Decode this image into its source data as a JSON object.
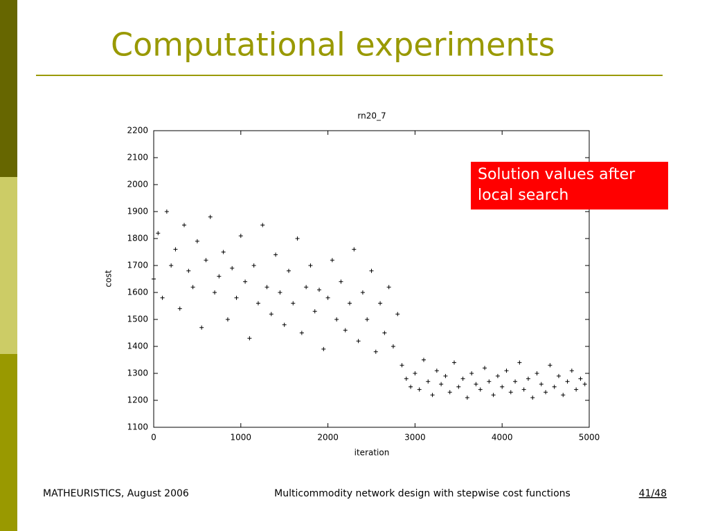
{
  "slide_title": "Computational experiments",
  "annotation": "Solution values after local search",
  "footer": {
    "left": "MATHEURISTICS, August 2006",
    "center": "Multicommodity network design with stepwise cost functions",
    "right": "41/48"
  },
  "chart_data": {
    "type": "scatter",
    "title": "rn20_7",
    "x_label": "iteration",
    "y_label": "cost",
    "xlim": [
      0,
      5000
    ],
    "xticks": [
      0,
      1000,
      2000,
      3000,
      4000,
      5000
    ],
    "ylim": [
      1100,
      2200
    ],
    "yticks": [
      1100,
      1200,
      1300,
      1400,
      1500,
      1600,
      1700,
      1800,
      1900,
      2000,
      2100,
      2200
    ],
    "series": [
      {
        "color": "#000000",
        "x": [
          0,
          50,
          100,
          150,
          200,
          250,
          300,
          350,
          400,
          450,
          500,
          550,
          600,
          650,
          700,
          750,
          800,
          850,
          900,
          950,
          1000,
          1050,
          1100,
          1150,
          1200,
          1250,
          1300,
          1350,
          1400,
          1450,
          1500,
          1550,
          1600,
          1650,
          1700,
          1750,
          1800,
          1850,
          1900,
          1950,
          2000,
          2050,
          2100,
          2150,
          2200,
          2250,
          2300,
          2350,
          2400,
          2450,
          2500,
          2550,
          2600,
          2650,
          2700,
          2750,
          2800,
          2850,
          2900,
          2950,
          3000,
          3050,
          3100,
          3150,
          3200,
          3250,
          3300,
          3350,
          3400,
          3450,
          3500,
          3550,
          3600,
          3650,
          3700,
          3750,
          3800,
          3850,
          3900,
          3950,
          4000,
          4050,
          4100,
          4150,
          4200,
          4250,
          4300,
          4350,
          4400,
          4450,
          4500,
          4550,
          4600,
          4650,
          4700,
          4750,
          4800,
          4850,
          4900,
          4950
        ],
        "values": [
          1650,
          1820,
          1580,
          1900,
          1700,
          1760,
          1540,
          1850,
          1680,
          1620,
          1790,
          1470,
          1720,
          1880,
          1600,
          1660,
          1750,
          1500,
          1690,
          1580,
          1810,
          1640,
          1430,
          1700,
          1560,
          1850,
          1620,
          1520,
          1740,
          1600,
          1480,
          1680,
          1560,
          1800,
          1450,
          1620,
          1700,
          1530,
          1610,
          1390,
          1580,
          1720,
          1500,
          1640,
          1460,
          1560,
          1760,
          1420,
          1600,
          1500,
          1680,
          1380,
          1560,
          1450,
          1620,
          1400,
          1520,
          1330,
          1280,
          1250,
          1300,
          1240,
          1350,
          1270,
          1220,
          1310,
          1260,
          1290,
          1230,
          1340,
          1250,
          1280,
          1210,
          1300,
          1260,
          1240,
          1320,
          1270,
          1220,
          1290,
          1250,
          1310,
          1230,
          1270,
          1340,
          1240,
          1280,
          1210,
          1300,
          1260,
          1230,
          1330,
          1250,
          1290,
          1220,
          1270,
          1310,
          1240,
          1280,
          1260
        ]
      }
    ]
  }
}
